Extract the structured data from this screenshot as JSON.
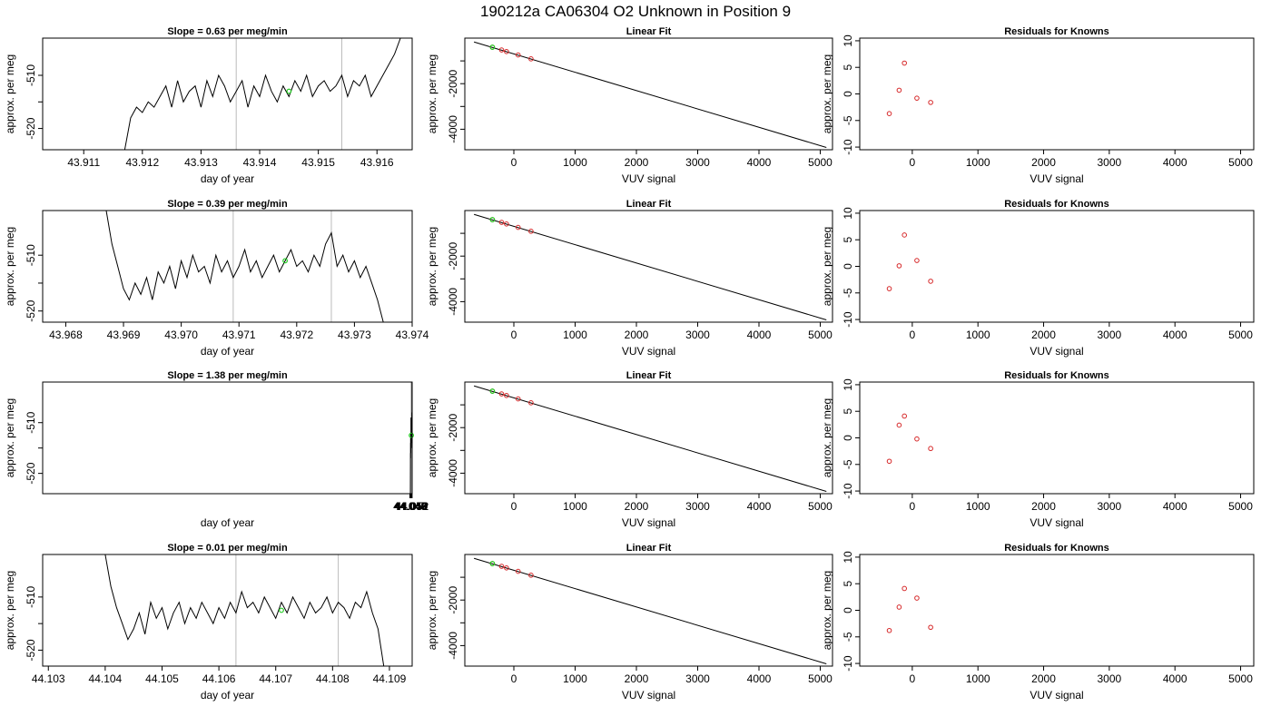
{
  "page_title": "190212a      CA06304   O2 Unknown in Position  9",
  "colors": {
    "trace": "#000000",
    "known": "#d62728",
    "unknown": "#22cc22",
    "vline": "#bbbbbb"
  },
  "chart_data": [
    {
      "type": "line",
      "title": "Slope =  0.63  per meg/min",
      "xlabel": "day of year",
      "ylabel": "approx. per meg",
      "xlim": [
        43.9103,
        43.9166
      ],
      "ylim": [
        -524,
        -503
      ],
      "xticks": [
        43.911,
        43.912,
        43.913,
        43.914,
        43.915,
        43.916
      ],
      "xtick_labels": [
        "43.911",
        "43.912",
        "43.913",
        "43.914",
        "43.915",
        "43.916"
      ],
      "yticks": [
        -520,
        -515,
        -510
      ],
      "ytick_labels": [
        "-520",
        "",
        "-510"
      ],
      "vlines": [
        43.9136,
        43.9154
      ],
      "x": [
        43.9117,
        43.9118,
        43.9119,
        43.912,
        43.9121,
        43.9122,
        43.9123,
        43.9124,
        43.9125,
        43.9126,
        43.9127,
        43.9128,
        43.9129,
        43.913,
        43.9131,
        43.9132,
        43.9133,
        43.9134,
        43.9135,
        43.9136,
        43.9137,
        43.9138,
        43.9139,
        43.914,
        43.9141,
        43.9142,
        43.9143,
        43.9144,
        43.9145,
        43.9146,
        43.9147,
        43.9148,
        43.9149,
        43.915,
        43.9151,
        43.9152,
        43.9153,
        43.9154,
        43.9155,
        43.9156,
        43.9157,
        43.9158,
        43.9159,
        43.916,
        43.9161,
        43.9162,
        43.9163,
        43.9164
      ],
      "y": [
        -524,
        -518,
        -516,
        -517,
        -515,
        -516,
        -514,
        -512,
        -516,
        -511,
        -515,
        -513,
        -512,
        -516,
        -511,
        -514,
        -510,
        -512,
        -515,
        -513,
        -511,
        -516,
        -512,
        -514,
        -510,
        -513,
        -515,
        -512,
        -514,
        -511,
        -513,
        -510,
        -514,
        -512,
        -511,
        -513,
        -512,
        -510,
        -514,
        -511,
        -512,
        -510,
        -514,
        -512,
        -510,
        -508,
        -506,
        -503
      ],
      "unknown_point": {
        "x": 43.9145,
        "y": -513
      }
    },
    {
      "type": "line",
      "title": "Linear Fit",
      "xlabel": "VUV signal",
      "ylabel": "approx. per meg",
      "xlim": [
        -800,
        5200
      ],
      "ylim": [
        -4900,
        0
      ],
      "xticks": [
        0,
        1000,
        2000,
        3000,
        4000,
        5000
      ],
      "xtick_labels": [
        "0",
        "1000",
        "2000",
        "3000",
        "4000",
        "5000"
      ],
      "yticks": [
        -4000,
        -3000,
        -2000,
        -1000
      ],
      "ytick_labels": [
        "-4000",
        "",
        "-2000",
        ""
      ],
      "fit_line": {
        "x": [
          -650,
          5100
        ],
        "y": [
          -170,
          -4800
        ]
      },
      "known_points": {
        "x": [
          -350,
          -200,
          -120,
          70,
          280
        ],
        "y": [
          -400,
          -520,
          -590,
          -740,
          -910
        ]
      },
      "unknown_point": {
        "x": -350,
        "y": -400
      }
    },
    {
      "type": "scatter",
      "title": "Residuals for Knowns",
      "xlabel": "VUV signal",
      "ylabel": "approx. per meg",
      "xlim": [
        -800,
        5200
      ],
      "ylim": [
        -10.5,
        10.5
      ],
      "xticks": [
        0,
        1000,
        2000,
        3000,
        4000,
        5000
      ],
      "xtick_labels": [
        "0",
        "1000",
        "2000",
        "3000",
        "4000",
        "5000"
      ],
      "yticks": [
        -10,
        -5,
        0,
        5,
        10
      ],
      "ytick_labels": [
        "-10",
        "-5",
        "0",
        "5",
        "10"
      ],
      "known_points": {
        "x": [
          -350,
          -200,
          -120,
          70,
          280
        ],
        "y": [
          -3.7,
          0.7,
          5.8,
          -0.8,
          -1.6
        ]
      }
    },
    {
      "type": "line",
      "title": "Slope =  0.39  per meg/min",
      "xlabel": "day of year",
      "ylabel": "approx. per meg",
      "xlim": [
        43.9676,
        43.974
      ],
      "ylim": [
        -522,
        -502
      ],
      "xticks": [
        43.968,
        43.969,
        43.97,
        43.971,
        43.972,
        43.973,
        43.974
      ],
      "xtick_labels": [
        "43.968",
        "43.969",
        "43.970",
        "43.971",
        "43.972",
        "43.973",
        "43.974"
      ],
      "yticks": [
        -520,
        -515,
        -510
      ],
      "ytick_labels": [
        "-520",
        "",
        "-510"
      ],
      "vlines": [
        43.9709,
        43.9726
      ],
      "x": [
        43.9687,
        43.9688,
        43.9689,
        43.969,
        43.9691,
        43.9692,
        43.9693,
        43.9694,
        43.9695,
        43.9696,
        43.9697,
        43.9698,
        43.9699,
        43.97,
        43.9701,
        43.9702,
        43.9703,
        43.9704,
        43.9705,
        43.9706,
        43.9707,
        43.9708,
        43.9709,
        43.971,
        43.9711,
        43.9712,
        43.9713,
        43.9714,
        43.9715,
        43.9716,
        43.9717,
        43.9718,
        43.9719,
        43.972,
        43.9721,
        43.9722,
        43.9723,
        43.9724,
        43.9725,
        43.9726,
        43.9727,
        43.9728,
        43.9729,
        43.973,
        43.9731,
        43.9732,
        43.9733,
        43.9734,
        43.9735
      ],
      "y": [
        -502,
        -508,
        -512,
        -516,
        -518,
        -515,
        -517,
        -514,
        -518,
        -513,
        -515,
        -512,
        -516,
        -511,
        -514,
        -510,
        -513,
        -512,
        -515,
        -510,
        -513,
        -511,
        -514,
        -512,
        -509,
        -513,
        -511,
        -514,
        -512,
        -510,
        -513,
        -511,
        -509,
        -512,
        -511,
        -513,
        -510,
        -512,
        -508,
        -506,
        -512,
        -510,
        -513,
        -511,
        -514,
        -512,
        -515,
        -518,
        -522
      ],
      "unknown_point": {
        "x": 43.9718,
        "y": -511
      }
    },
    {
      "type": "line",
      "title": "Linear Fit",
      "xlabel": "VUV signal",
      "ylabel": "approx. per meg",
      "xlim": [
        -800,
        5200
      ],
      "ylim": [
        -4900,
        0
      ],
      "xticks": [
        0,
        1000,
        2000,
        3000,
        4000,
        5000
      ],
      "xtick_labels": [
        "0",
        "1000",
        "2000",
        "3000",
        "4000",
        "5000"
      ],
      "yticks": [
        -4000,
        -3000,
        -2000,
        -1000
      ],
      "ytick_labels": [
        "-4000",
        "",
        "-2000",
        ""
      ],
      "fit_line": {
        "x": [
          -650,
          5100
        ],
        "y": [
          -170,
          -4800
        ]
      },
      "known_points": {
        "x": [
          -350,
          -200,
          -120,
          70,
          280
        ],
        "y": [
          -400,
          -520,
          -590,
          -740,
          -910
        ]
      },
      "unknown_point": {
        "x": -350,
        "y": -400
      }
    },
    {
      "type": "scatter",
      "title": "Residuals for Knowns",
      "xlabel": "VUV signal",
      "ylabel": "approx. per meg",
      "xlim": [
        -800,
        5200
      ],
      "ylim": [
        -10.5,
        10.5
      ],
      "xticks": [
        0,
        1000,
        2000,
        3000,
        4000,
        5000
      ],
      "xtick_labels": [
        "0",
        "1000",
        "2000",
        "3000",
        "4000",
        "5000"
      ],
      "yticks": [
        -10,
        -5,
        0,
        5,
        10
      ],
      "ytick_labels": [
        "-10",
        "-5",
        "0",
        "5",
        "10"
      ],
      "known_points": {
        "x": [
          -350,
          -200,
          -120,
          70,
          280
        ],
        "y": [
          -4.2,
          0.1,
          5.9,
          1.1,
          -2.8
        ]
      }
    },
    {
      "type": "line",
      "title": "Slope =  1.38  per meg/min",
      "xlabel": "day of year",
      "ylabel": "approx. per meg",
      "xlim": [
        43.0458,
        44.0522
      ],
      "ylim": [
        -524,
        -502
      ],
      "xticks": [
        44.046,
        44.047,
        44.048,
        44.049,
        44.05,
        44.051,
        44.052
      ],
      "xtick_labels": [
        "44.046",
        "44.047",
        "44.048",
        "44.049",
        "44.050",
        "44.051",
        "44.052"
      ],
      "yticks": [
        -520,
        -515,
        -510
      ],
      "ytick_labels": [
        "-520",
        "",
        "-510"
      ],
      "vlines": [
        44.049,
        44.0508
      ],
      "x": [
        44.0473,
        44.0474,
        44.0475,
        44.0476,
        44.0477,
        44.0478,
        44.0479,
        44.048,
        44.0481,
        44.0482,
        44.0483,
        44.0484,
        44.0485,
        44.0486,
        44.0487,
        44.0488,
        44.0489,
        44.049,
        44.0491,
        44.0492,
        44.0493,
        44.0494,
        44.0495,
        44.0496,
        44.0497,
        44.0498,
        44.0499,
        44.05,
        44.0501,
        44.0502,
        44.0503,
        44.0504,
        44.0505,
        44.0506,
        44.0507,
        44.0508,
        44.0509,
        44.051,
        44.0511,
        44.0512,
        44.0513,
        44.0514,
        44.0515,
        44.0516,
        44.0517,
        44.0518
      ],
      "y": [
        -524,
        -518,
        -519,
        -516,
        -517,
        -514,
        -516,
        -513,
        -517,
        -512,
        -515,
        -513,
        -516,
        -514,
        -512,
        -515,
        -513,
        -509,
        -514,
        -512,
        -515,
        -513,
        -511,
        -514,
        -512,
        -510,
        -514,
        -512,
        -510,
        -513,
        -511,
        -514,
        -510,
        -512,
        -509,
        -512,
        -510,
        -513,
        -508,
        -512,
        -510,
        -513,
        -511,
        -509,
        -506,
        -502
      ],
      "unknown_point": {
        "x": 44.0499,
        "y": -512.5
      }
    },
    {
      "type": "line",
      "title": "Linear Fit",
      "xlabel": "VUV signal",
      "ylabel": "approx. per meg",
      "xlim": [
        -800,
        5200
      ],
      "ylim": [
        -4900,
        0
      ],
      "xticks": [
        0,
        1000,
        2000,
        3000,
        4000,
        5000
      ],
      "xtick_labels": [
        "0",
        "1000",
        "2000",
        "3000",
        "4000",
        "5000"
      ],
      "yticks": [
        -4000,
        -3000,
        -2000,
        -1000
      ],
      "ytick_labels": [
        "-4000",
        "",
        "-2000",
        ""
      ],
      "fit_line": {
        "x": [
          -650,
          5100
        ],
        "y": [
          -170,
          -4800
        ]
      },
      "known_points": {
        "x": [
          -350,
          -200,
          -120,
          70,
          280
        ],
        "y": [
          -400,
          -520,
          -590,
          -740,
          -910
        ]
      },
      "unknown_point": {
        "x": -350,
        "y": -400
      }
    },
    {
      "type": "scatter",
      "title": "Residuals for Knowns",
      "xlabel": "VUV signal",
      "ylabel": "approx. per meg",
      "xlim": [
        -800,
        5200
      ],
      "ylim": [
        -10.5,
        10.5
      ],
      "xticks": [
        0,
        1000,
        2000,
        3000,
        4000,
        5000
      ],
      "xtick_labels": [
        "0",
        "1000",
        "2000",
        "3000",
        "4000",
        "5000"
      ],
      "yticks": [
        -10,
        -5,
        0,
        5,
        10
      ],
      "ytick_labels": [
        "-10",
        "-5",
        "0",
        "5",
        "10"
      ],
      "known_points": {
        "x": [
          -350,
          -200,
          -120,
          70,
          280
        ],
        "y": [
          -4.4,
          2.4,
          4.1,
          -0.2,
          -2.0
        ]
      }
    },
    {
      "type": "line",
      "title": "Slope =  0.01  per meg/min",
      "xlabel": "day of year",
      "ylabel": "approx. per meg",
      "xlim": [
        44.1029,
        44.1094
      ],
      "ylim": [
        -523,
        -502
      ],
      "xticks": [
        44.103,
        44.104,
        44.105,
        44.106,
        44.107,
        44.108,
        44.109
      ],
      "xtick_labels": [
        "44.103",
        "44.104",
        "44.105",
        "44.106",
        "44.107",
        "44.108",
        "44.109"
      ],
      "yticks": [
        -520,
        -515,
        -510
      ],
      "ytick_labels": [
        "-520",
        "",
        "-510"
      ],
      "vlines": [
        44.1063,
        44.1081
      ],
      "x": [
        44.104,
        44.1041,
        44.1042,
        44.1043,
        44.1044,
        44.1045,
        44.1046,
        44.1047,
        44.1048,
        44.1049,
        44.105,
        44.1051,
        44.1052,
        44.1053,
        44.1054,
        44.1055,
        44.1056,
        44.1057,
        44.1058,
        44.1059,
        44.106,
        44.1061,
        44.1062,
        44.1063,
        44.1064,
        44.1065,
        44.1066,
        44.1067,
        44.1068,
        44.1069,
        44.107,
        44.1071,
        44.1072,
        44.1073,
        44.1074,
        44.1075,
        44.1076,
        44.1077,
        44.1078,
        44.1079,
        44.108,
        44.1081,
        44.1082,
        44.1083,
        44.1084,
        44.1085,
        44.1086,
        44.1087,
        44.1088,
        44.1089
      ],
      "y": [
        -502,
        -508,
        -512,
        -515,
        -518,
        -516,
        -513,
        -517,
        -511,
        -514,
        -512,
        -516,
        -513,
        -511,
        -515,
        -512,
        -514,
        -511,
        -513,
        -515,
        -512,
        -514,
        -511,
        -513,
        -509,
        -512,
        -511,
        -513,
        -510,
        -512,
        -514,
        -511,
        -513,
        -510,
        -512,
        -514,
        -511,
        -513,
        -512,
        -510,
        -513,
        -511,
        -512,
        -514,
        -511,
        -512,
        -509,
        -513,
        -516,
        -523
      ],
      "unknown_point": {
        "x": 44.1071,
        "y": -512.5
      }
    },
    {
      "type": "line",
      "title": "Linear Fit",
      "xlabel": "VUV signal",
      "ylabel": "approx. per meg",
      "xlim": [
        -800,
        5200
      ],
      "ylim": [
        -4900,
        0
      ],
      "xticks": [
        0,
        1000,
        2000,
        3000,
        4000,
        5000
      ],
      "xtick_labels": [
        "0",
        "1000",
        "2000",
        "3000",
        "4000",
        "5000"
      ],
      "yticks": [
        -4000,
        -3000,
        -2000,
        -1000
      ],
      "ytick_labels": [
        "-4000",
        "",
        "-2000",
        ""
      ],
      "fit_line": {
        "x": [
          -650,
          5100
        ],
        "y": [
          -170,
          -4800
        ]
      },
      "known_points": {
        "x": [
          -350,
          -200,
          -120,
          70,
          280
        ],
        "y": [
          -400,
          -520,
          -590,
          -740,
          -910
        ]
      },
      "unknown_point": {
        "x": -350,
        "y": -400
      }
    },
    {
      "type": "scatter",
      "title": "Residuals for Knowns",
      "xlabel": "VUV signal",
      "ylabel": "approx. per meg",
      "xlim": [
        -800,
        5200
      ],
      "ylim": [
        -10.5,
        10.5
      ],
      "xticks": [
        0,
        1000,
        2000,
        3000,
        4000,
        5000
      ],
      "xtick_labels": [
        "0",
        "1000",
        "2000",
        "3000",
        "4000",
        "5000"
      ],
      "yticks": [
        -10,
        -5,
        0,
        5,
        10
      ],
      "ytick_labels": [
        "-10",
        "-5",
        "0",
        "5",
        "10"
      ],
      "known_points": {
        "x": [
          -350,
          -200,
          -120,
          70,
          280
        ],
        "y": [
          -3.8,
          0.6,
          4.1,
          2.3,
          -3.2
        ]
      }
    }
  ]
}
